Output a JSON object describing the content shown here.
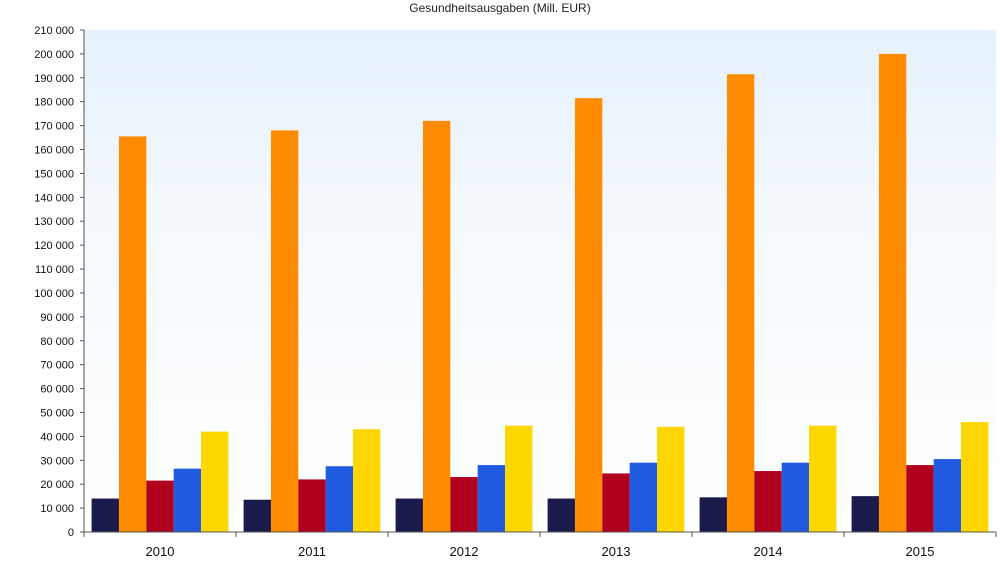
{
  "chart_data": {
    "type": "bar",
    "title": "Gesundheitsausgaben (Mill. EUR)",
    "xlabel": "",
    "ylabel": "",
    "ylim": [
      0,
      210000
    ],
    "yticks": [
      0,
      10000,
      20000,
      30000,
      40000,
      50000,
      60000,
      70000,
      80000,
      90000,
      100000,
      110000,
      120000,
      130000,
      140000,
      150000,
      160000,
      170000,
      180000,
      190000,
      200000,
      210000
    ],
    "ytick_labels": [
      "0",
      "10 000",
      "20 000",
      "30 000",
      "40 000",
      "50 000",
      "60 000",
      "70 000",
      "80 000",
      "90 000",
      "100 000",
      "110 000",
      "120 000",
      "130 000",
      "140 000",
      "150 000",
      "160 000",
      "170 000",
      "180 000",
      "190 000",
      "200 000",
      "210 000"
    ],
    "categories": [
      "2010",
      "2011",
      "2012",
      "2013",
      "2014",
      "2015"
    ],
    "series": [
      {
        "color": "#1a1a4d",
        "values": [
          14000,
          13500,
          14000,
          14000,
          14500,
          15000
        ]
      },
      {
        "color": "#ff8c00",
        "values": [
          165500,
          168000,
          172000,
          181500,
          191500,
          200000
        ]
      },
      {
        "color": "#b0001e",
        "values": [
          21500,
          22000,
          23000,
          24500,
          25500,
          28000
        ]
      },
      {
        "color": "#1e5be0",
        "values": [
          26500,
          27500,
          28000,
          29000,
          29000,
          30500
        ]
      },
      {
        "color": "#ffd700",
        "values": [
          42000,
          43000,
          44500,
          44000,
          44500,
          46000
        ]
      }
    ],
    "grid": false,
    "legend": "none"
  }
}
